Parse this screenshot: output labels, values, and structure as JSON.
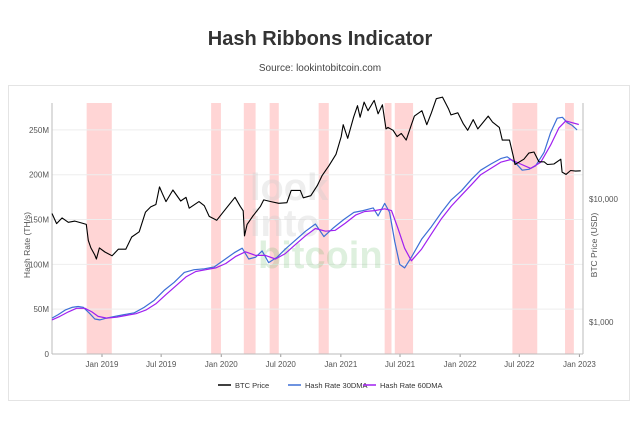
{
  "header": {
    "title": "Hash Ribbons Indicator",
    "subtitle": "Source: lookintobitcoin.com"
  },
  "watermark": {
    "line1": "look",
    "line2": "into",
    "line3": "bitcoin"
  },
  "colors": {
    "btc": "#000000",
    "hr30": "#3d6fd6",
    "hr60": "#a020f0",
    "band": "#ffc7c7",
    "grid": "#eeeeee"
  },
  "chart_data": {
    "type": "line",
    "title": "Hash Ribbons Indicator",
    "subtitle": "Source: lookintobitcoin.com",
    "ylabel": "Hash Rate (TH/s)",
    "y2label": "BTC Price (USD)",
    "y2scale": "log",
    "ylim": [
      0,
      280
    ],
    "y2lim": [
      550,
      60000
    ],
    "y_ticks": [
      {
        "v": 0,
        "label": "0"
      },
      {
        "v": 50,
        "label": "50M"
      },
      {
        "v": 100,
        "label": "100M"
      },
      {
        "v": 150,
        "label": "150M"
      },
      {
        "v": 200,
        "label": "200M"
      },
      {
        "v": 250,
        "label": "250M"
      }
    ],
    "y2_ticks": [
      {
        "v": 1000,
        "label": "$1,000"
      },
      {
        "v": 10000,
        "label": "$10,000"
      }
    ],
    "x_ticks": [
      {
        "v": "2019-01-01",
        "label": "Jan 2019"
      },
      {
        "v": "2019-07-01",
        "label": "Jul 2019"
      },
      {
        "v": "2020-01-01",
        "label": "Jan 2020"
      },
      {
        "v": "2020-07-01",
        "label": "Jul 2020"
      },
      {
        "v": "2021-01-01",
        "label": "Jan 2021"
      },
      {
        "v": "2021-07-01",
        "label": "Jul 2021"
      },
      {
        "v": "2022-01-01",
        "label": "Jan 2022"
      },
      {
        "v": "2022-07-01",
        "label": "Jul 2022"
      },
      {
        "v": "2023-01-01",
        "label": "Jan 2023"
      }
    ],
    "xlim": [
      "2018-08-01",
      "2023-01-12"
    ],
    "capitulation_bands": [
      [
        "2018-11-15",
        "2019-01-31"
      ],
      [
        "2019-12-01",
        "2019-12-31"
      ],
      [
        "2020-03-10",
        "2020-04-15"
      ],
      [
        "2020-05-28",
        "2020-06-25"
      ],
      [
        "2020-10-25",
        "2020-11-25"
      ],
      [
        "2021-05-15",
        "2021-06-05"
      ],
      [
        "2021-06-15",
        "2021-08-10"
      ],
      [
        "2022-06-10",
        "2022-08-25"
      ],
      [
        "2022-11-18",
        "2022-12-15"
      ]
    ],
    "series": [
      {
        "name": "BTC Price",
        "axis": "right",
        "points": [
          [
            "2018-08-01",
            7600
          ],
          [
            "2018-08-15",
            6300
          ],
          [
            "2018-09-01",
            7000
          ],
          [
            "2018-09-20",
            6450
          ],
          [
            "2018-10-10",
            6600
          ],
          [
            "2018-11-01",
            6350
          ],
          [
            "2018-11-14",
            6200
          ],
          [
            "2018-11-20",
            4600
          ],
          [
            "2018-11-28",
            4000
          ],
          [
            "2018-12-10",
            3500
          ],
          [
            "2018-12-15",
            3250
          ],
          [
            "2018-12-24",
            4000
          ],
          [
            "2019-01-10",
            3700
          ],
          [
            "2019-02-01",
            3450
          ],
          [
            "2019-02-20",
            3900
          ],
          [
            "2019-03-15",
            3900
          ],
          [
            "2019-04-02",
            4900
          ],
          [
            "2019-04-25",
            5400
          ],
          [
            "2019-05-14",
            7800
          ],
          [
            "2019-05-30",
            8600
          ],
          [
            "2019-06-15",
            9000
          ],
          [
            "2019-06-26",
            12500
          ],
          [
            "2019-07-05",
            11000
          ],
          [
            "2019-07-16",
            9500
          ],
          [
            "2019-08-06",
            11800
          ],
          [
            "2019-08-30",
            9600
          ],
          [
            "2019-09-15",
            10300
          ],
          [
            "2019-09-25",
            8400
          ],
          [
            "2019-10-25",
            9500
          ],
          [
            "2019-11-10",
            8800
          ],
          [
            "2019-11-25",
            7200
          ],
          [
            "2019-12-18",
            6700
          ],
          [
            "2020-01-10",
            8000
          ],
          [
            "2020-02-12",
            10300
          ],
          [
            "2020-02-28",
            8700
          ],
          [
            "2020-03-08",
            8000
          ],
          [
            "2020-03-12",
            5000
          ],
          [
            "2020-03-20",
            6200
          ],
          [
            "2020-04-06",
            7200
          ],
          [
            "2020-04-30",
            8700
          ],
          [
            "2020-05-10",
            9800
          ],
          [
            "2020-06-01",
            9500
          ],
          [
            "2020-06-25",
            9200
          ],
          [
            "2020-07-20",
            9300
          ],
          [
            "2020-08-02",
            11700
          ],
          [
            "2020-08-30",
            11700
          ],
          [
            "2020-09-08",
            10200
          ],
          [
            "2020-10-01",
            10600
          ],
          [
            "2020-10-21",
            12800
          ],
          [
            "2020-11-05",
            15500
          ],
          [
            "2020-11-25",
            18500
          ],
          [
            "2020-12-17",
            23000
          ],
          [
            "2021-01-02",
            32000
          ],
          [
            "2021-01-08",
            40000
          ],
          [
            "2021-01-22",
            31000
          ],
          [
            "2021-02-09",
            46000
          ],
          [
            "2021-02-21",
            57000
          ],
          [
            "2021-03-01",
            46000
          ],
          [
            "2021-03-13",
            61000
          ],
          [
            "2021-03-25",
            52000
          ],
          [
            "2021-04-13",
            63000
          ],
          [
            "2021-04-25",
            49000
          ],
          [
            "2021-05-08",
            58000
          ],
          [
            "2021-05-19",
            37000
          ],
          [
            "2021-05-25",
            38000
          ],
          [
            "2021-06-10",
            36000
          ],
          [
            "2021-06-22",
            32000
          ],
          [
            "2021-07-05",
            34000
          ],
          [
            "2021-07-20",
            30000
          ],
          [
            "2021-08-05",
            40000
          ],
          [
            "2021-08-14",
            47000
          ],
          [
            "2021-09-06",
            52000
          ],
          [
            "2021-09-21",
            40000
          ],
          [
            "2021-10-05",
            50000
          ],
          [
            "2021-10-20",
            65000
          ],
          [
            "2021-11-08",
            67000
          ],
          [
            "2021-11-26",
            54000
          ],
          [
            "2021-12-04",
            48000
          ],
          [
            "2021-12-25",
            50000
          ],
          [
            "2022-01-10",
            41000
          ],
          [
            "2022-01-24",
            36000
          ],
          [
            "2022-02-10",
            44000
          ],
          [
            "2022-02-24",
            37000
          ],
          [
            "2022-03-28",
            47000
          ],
          [
            "2022-04-10",
            42000
          ],
          [
            "2022-05-01",
            38000
          ],
          [
            "2022-05-10",
            30000
          ],
          [
            "2022-06-01",
            30000
          ],
          [
            "2022-06-13",
            22000
          ],
          [
            "2022-06-18",
            19000
          ],
          [
            "2022-07-15",
            21000
          ],
          [
            "2022-07-30",
            23500
          ],
          [
            "2022-08-15",
            24000
          ],
          [
            "2022-08-30",
            20000
          ],
          [
            "2022-09-15",
            20000
          ],
          [
            "2022-09-25",
            19000
          ],
          [
            "2022-10-15",
            19200
          ],
          [
            "2022-11-05",
            21000
          ],
          [
            "2022-11-09",
            16500
          ],
          [
            "2022-11-21",
            15800
          ],
          [
            "2022-12-05",
            17000
          ],
          [
            "2022-12-20",
            16800
          ],
          [
            "2023-01-05",
            16900
          ]
        ]
      },
      {
        "name": "Hash Rate 30DMA",
        "axis": "left",
        "points": [
          [
            "2018-08-01",
            40
          ],
          [
            "2018-08-20",
            44
          ],
          [
            "2018-09-10",
            49
          ],
          [
            "2018-10-01",
            52
          ],
          [
            "2018-10-20",
            53
          ],
          [
            "2018-11-05",
            52
          ],
          [
            "2018-11-25",
            45
          ],
          [
            "2018-12-10",
            39
          ],
          [
            "2018-12-25",
            38
          ],
          [
            "2019-01-15",
            40
          ],
          [
            "2019-02-10",
            42
          ],
          [
            "2019-03-10",
            44
          ],
          [
            "2019-04-10",
            46
          ],
          [
            "2019-05-10",
            52
          ],
          [
            "2019-06-10",
            60
          ],
          [
            "2019-07-10",
            71
          ],
          [
            "2019-08-10",
            80
          ],
          [
            "2019-09-10",
            91
          ],
          [
            "2019-10-10",
            94
          ],
          [
            "2019-11-10",
            95
          ],
          [
            "2019-12-10",
            97
          ],
          [
            "2020-01-10",
            105
          ],
          [
            "2020-02-10",
            113
          ],
          [
            "2020-03-05",
            118
          ],
          [
            "2020-03-25",
            106
          ],
          [
            "2020-04-15",
            108
          ],
          [
            "2020-05-05",
            115
          ],
          [
            "2020-05-25",
            102
          ],
          [
            "2020-06-20",
            108
          ],
          [
            "2020-07-15",
            117
          ],
          [
            "2020-08-15",
            127
          ],
          [
            "2020-09-15",
            137
          ],
          [
            "2020-10-15",
            145
          ],
          [
            "2020-11-10",
            131
          ],
          [
            "2020-12-10",
            141
          ],
          [
            "2021-01-10",
            150
          ],
          [
            "2021-02-10",
            158
          ],
          [
            "2021-03-10",
            160
          ],
          [
            "2021-04-10",
            163
          ],
          [
            "2021-04-25",
            154
          ],
          [
            "2021-05-15",
            168
          ],
          [
            "2021-05-30",
            158
          ],
          [
            "2021-06-15",
            125
          ],
          [
            "2021-06-30",
            100
          ],
          [
            "2021-07-15",
            96
          ],
          [
            "2021-08-05",
            108
          ],
          [
            "2021-09-05",
            128
          ],
          [
            "2021-10-05",
            142
          ],
          [
            "2021-11-05",
            158
          ],
          [
            "2021-12-05",
            172
          ],
          [
            "2022-01-05",
            182
          ],
          [
            "2022-02-05",
            195
          ],
          [
            "2022-03-05",
            205
          ],
          [
            "2022-04-05",
            212
          ],
          [
            "2022-05-05",
            218
          ],
          [
            "2022-05-25",
            220
          ],
          [
            "2022-06-20",
            213
          ],
          [
            "2022-07-10",
            205
          ],
          [
            "2022-07-30",
            206
          ],
          [
            "2022-08-20",
            210
          ],
          [
            "2022-09-15",
            225
          ],
          [
            "2022-10-05",
            247
          ],
          [
            "2022-10-25",
            263
          ],
          [
            "2022-11-10",
            264
          ],
          [
            "2022-11-25",
            258
          ],
          [
            "2022-12-10",
            255
          ],
          [
            "2022-12-25",
            250
          ]
        ]
      },
      {
        "name": "Hash Rate 60DMA",
        "axis": "left",
        "points": [
          [
            "2018-08-01",
            38
          ],
          [
            "2018-08-25",
            42
          ],
          [
            "2018-09-20",
            47
          ],
          [
            "2018-10-15",
            51
          ],
          [
            "2018-11-10",
            51
          ],
          [
            "2018-12-01",
            47
          ],
          [
            "2018-12-20",
            42
          ],
          [
            "2019-01-15",
            40
          ],
          [
            "2019-02-15",
            41
          ],
          [
            "2019-03-15",
            43
          ],
          [
            "2019-04-15",
            45
          ],
          [
            "2019-05-15",
            49
          ],
          [
            "2019-06-15",
            56
          ],
          [
            "2019-07-15",
            66
          ],
          [
            "2019-08-15",
            76
          ],
          [
            "2019-09-15",
            86
          ],
          [
            "2019-10-15",
            92
          ],
          [
            "2019-11-15",
            94
          ],
          [
            "2019-12-15",
            96
          ],
          [
            "2020-01-15",
            101
          ],
          [
            "2020-02-15",
            109
          ],
          [
            "2020-03-15",
            114
          ],
          [
            "2020-04-15",
            110
          ],
          [
            "2020-05-15",
            110
          ],
          [
            "2020-06-15",
            106
          ],
          [
            "2020-07-15",
            112
          ],
          [
            "2020-08-15",
            122
          ],
          [
            "2020-09-15",
            132
          ],
          [
            "2020-10-15",
            140
          ],
          [
            "2020-11-15",
            137
          ],
          [
            "2020-12-15",
            138
          ],
          [
            "2021-01-15",
            146
          ],
          [
            "2021-02-15",
            155
          ],
          [
            "2021-03-15",
            159
          ],
          [
            "2021-04-15",
            160
          ],
          [
            "2021-05-15",
            162
          ],
          [
            "2021-06-05",
            160
          ],
          [
            "2021-06-25",
            140
          ],
          [
            "2021-07-15",
            118
          ],
          [
            "2021-08-05",
            104
          ],
          [
            "2021-09-05",
            117
          ],
          [
            "2021-10-05",
            134
          ],
          [
            "2021-11-05",
            151
          ],
          [
            "2021-12-05",
            165
          ],
          [
            "2022-01-05",
            177
          ],
          [
            "2022-02-05",
            189
          ],
          [
            "2022-03-05",
            200
          ],
          [
            "2022-04-05",
            207
          ],
          [
            "2022-05-05",
            214
          ],
          [
            "2022-06-05",
            217
          ],
          [
            "2022-07-05",
            212
          ],
          [
            "2022-08-05",
            207
          ],
          [
            "2022-09-05",
            214
          ],
          [
            "2022-10-05",
            233
          ],
          [
            "2022-10-30",
            252
          ],
          [
            "2022-11-20",
            260
          ],
          [
            "2022-12-10",
            258
          ],
          [
            "2022-12-30",
            256
          ]
        ]
      }
    ],
    "legend": {
      "position": "bottom",
      "items": [
        {
          "label": "BTC Price",
          "color": "#000000"
        },
        {
          "label": "Hash Rate 30DMA",
          "color": "#3d6fd6"
        },
        {
          "label": "Hash Rate 60DMA",
          "color": "#a020f0"
        }
      ]
    }
  }
}
